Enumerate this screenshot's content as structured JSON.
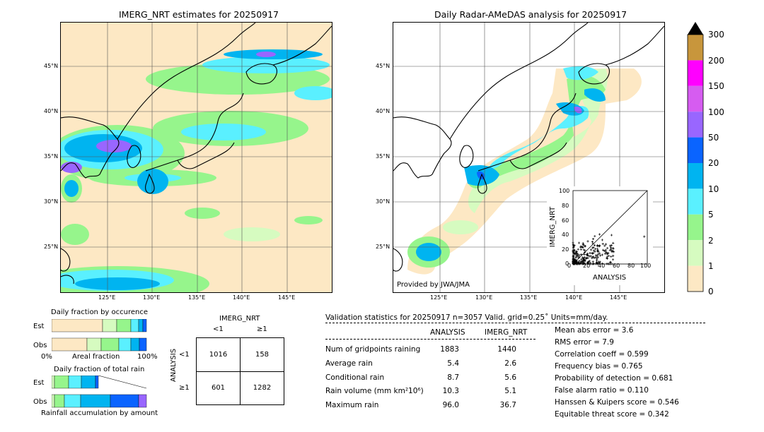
{
  "left_map": {
    "title": "IMERG_NRT estimates for 20250917",
    "lat_labels": [
      "45°N",
      "40°N",
      "35°N",
      "30°N",
      "25°N"
    ],
    "lon_labels": [
      "125°E",
      "130°E",
      "135°E",
      "140°E",
      "145°E"
    ]
  },
  "right_map": {
    "title": "Daily Radar-AMeDAS analysis for 20250917",
    "lat_labels": [
      "45°N",
      "40°N",
      "35°N",
      "30°N",
      "25°N"
    ],
    "lon_labels": [
      "125°E",
      "130°E",
      "135°E",
      "140°E",
      "145°E"
    ],
    "credit": "Provided by JWA/JMA"
  },
  "colorbar": {
    "ticks": [
      "300",
      "200",
      "150",
      "100",
      "50",
      "20",
      "10",
      "5",
      "2",
      "1",
      "0"
    ],
    "colors": [
      "#c8963c",
      "#ff00ff",
      "#d65cf0",
      "#9966ff",
      "#0a64ff",
      "#00b4f0",
      "#5af0ff",
      "#96f58c",
      "#d6fbc0",
      "#fde8c4"
    ]
  },
  "scatter": {
    "xlabel": "ANALYSIS",
    "ylabel": "IMERG_NRT",
    "ticks": [
      "0",
      "20",
      "40",
      "60",
      "80",
      "100"
    ]
  },
  "fraction_occurrence": {
    "title": "Daily fraction by occurence",
    "rows": [
      "Est",
      "Obs"
    ],
    "left_label": "0%",
    "mid_label": "Areal fraction",
    "right_label": "100%"
  },
  "fraction_total": {
    "title": "Daily fraction of total rain",
    "rows": [
      "Est",
      "Obs"
    ],
    "bottom_label": "Rainfall accumulation by amount"
  },
  "contingency": {
    "title": "IMERG_NRT",
    "col_labels": [
      "<1",
      "≥1"
    ],
    "row_labels": [
      "<1",
      "≥1"
    ],
    "side_label": "ANALYSIS",
    "cells": [
      [
        "1016",
        "158"
      ],
      [
        "601",
        "1282"
      ]
    ]
  },
  "validation": {
    "header": "Validation statistics for 20250917  n=3057 Valid. grid=0.25˚ Units=mm/day.",
    "col_analysis": "ANALYSIS",
    "col_imerg": "IMERG_NRT",
    "rows": [
      {
        "name": "Num of gridpoints raining",
        "analysis": "1883",
        "imerg": "1440"
      },
      {
        "name": "Average rain",
        "analysis": "5.4",
        "imerg": "2.6"
      },
      {
        "name": "Conditional rain",
        "analysis": "8.7",
        "imerg": "5.6"
      },
      {
        "name": "Rain volume (mm km²10⁶)",
        "analysis": "10.3",
        "imerg": "5.1"
      },
      {
        "name": "Maximum rain",
        "analysis": "96.0",
        "imerg": "36.7"
      }
    ],
    "scores": [
      "Mean abs error =    3.6",
      "RMS error =    7.9",
      "Correlation coeff =  0.599",
      "Frequency bias =  0.765",
      "Probability of detection =  0.681",
      "False alarm ratio =  0.110",
      "Hanssen & Kuipers score =  0.546",
      "Equitable threat score =  0.342"
    ]
  }
}
